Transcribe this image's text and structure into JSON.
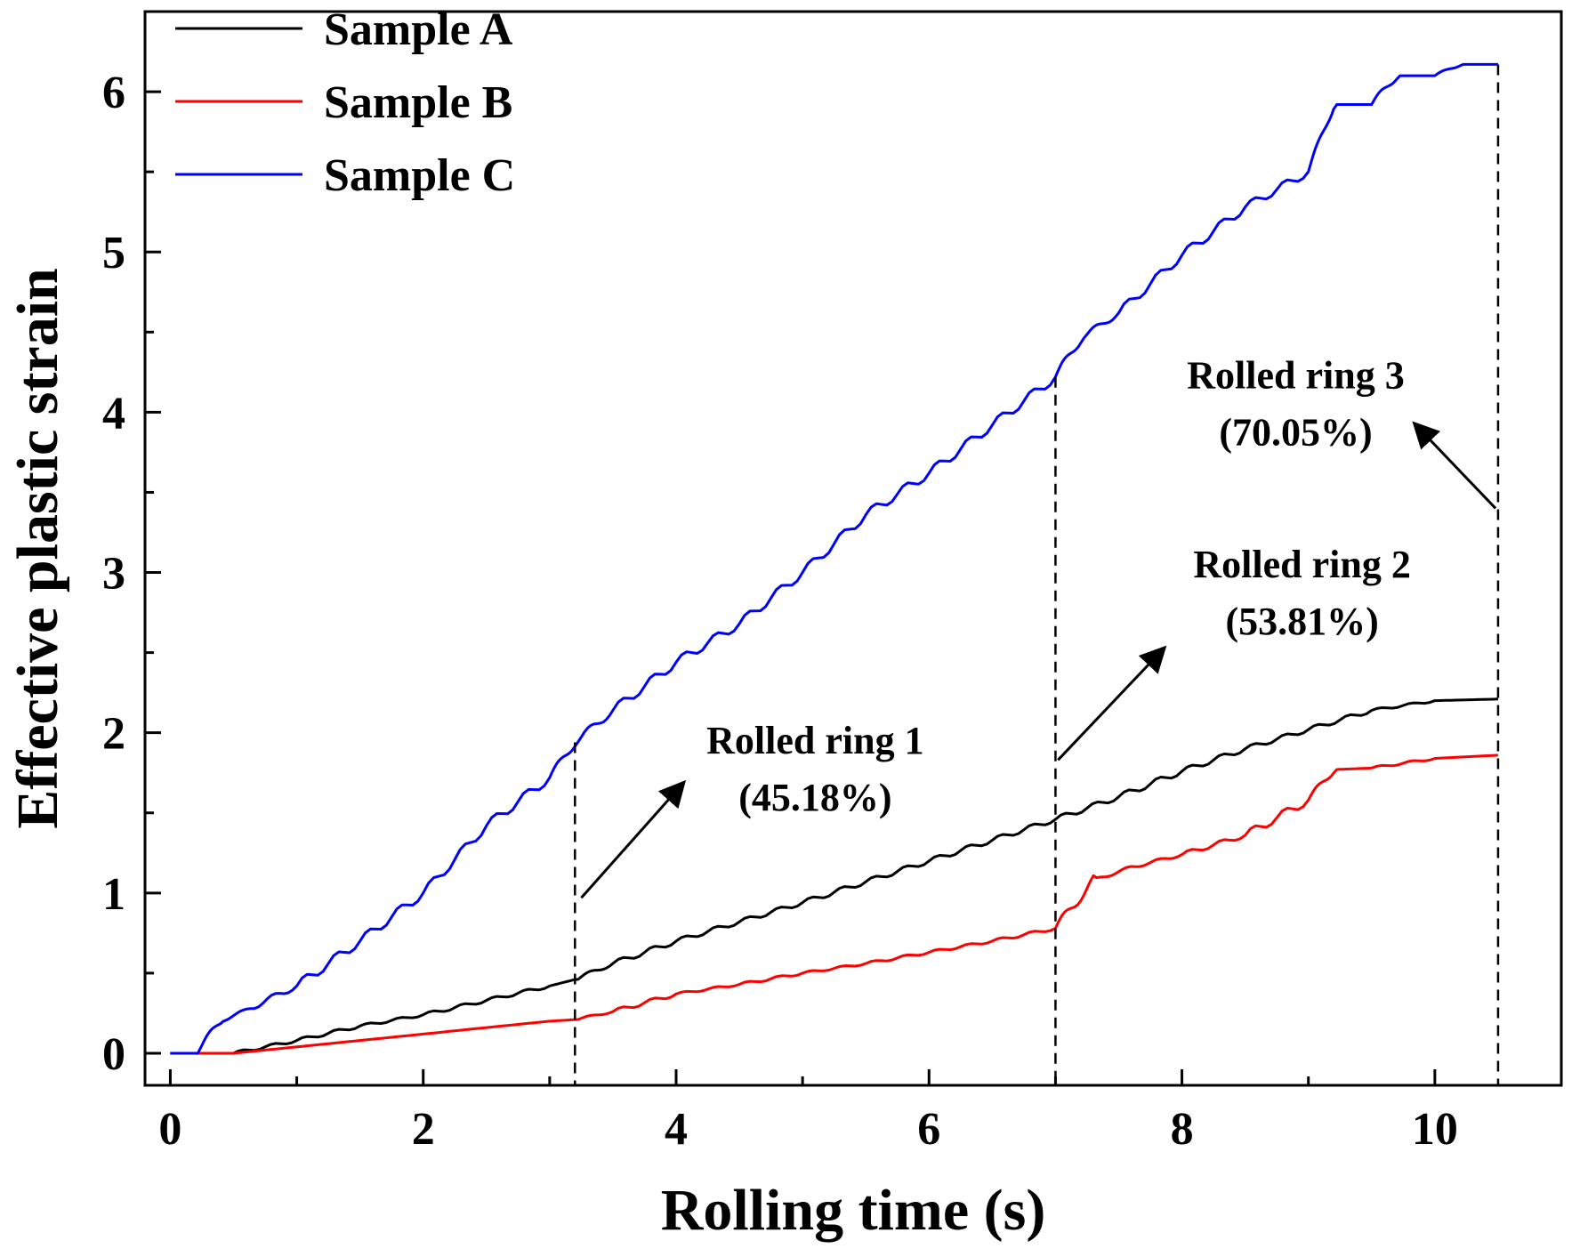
{
  "chart_data": {
    "type": "line",
    "title": "",
    "xlabel": "Rolling time (s)",
    "ylabel": "Effective plastic strain",
    "xlim": [
      -0.2,
      11.0
    ],
    "ylim": [
      -0.2,
      6.5
    ],
    "xticks": [
      0,
      2,
      4,
      6,
      8,
      10
    ],
    "yticks": [
      0,
      1,
      2,
      3,
      4,
      5,
      6
    ],
    "grid": false,
    "legend_position": "top-left",
    "series": [
      {
        "name": "Sample A",
        "color": "#000000",
        "x": [
          0,
          0.5,
          1.0,
          1.5,
          2.0,
          2.5,
          3.0,
          3.2,
          3.5,
          4.0,
          4.5,
          5.0,
          5.5,
          6.0,
          6.5,
          7.0,
          7.5,
          8.0,
          8.5,
          9.0,
          9.5,
          10.0,
          10.5
        ],
        "y": [
          0,
          0,
          0.08,
          0.17,
          0.24,
          0.33,
          0.42,
          0.46,
          0.56,
          0.7,
          0.82,
          0.94,
          1.07,
          1.2,
          1.33,
          1.46,
          1.6,
          1.76,
          1.9,
          2.02,
          2.14,
          2.2,
          2.21
        ]
      },
      {
        "name": "Sample B",
        "color": "#ff0000",
        "x": [
          0,
          0.5,
          1.0,
          1.5,
          2.0,
          2.5,
          3.0,
          3.2,
          3.5,
          4.0,
          4.5,
          5.0,
          5.5,
          6.0,
          6.5,
          7.0,
          7.3,
          7.6,
          8.0,
          8.5,
          9.0,
          9.2,
          9.5,
          10.0,
          10.5
        ],
        "y": [
          0,
          0,
          0.04,
          0.08,
          0.12,
          0.16,
          0.2,
          0.21,
          0.26,
          0.37,
          0.43,
          0.5,
          0.56,
          0.63,
          0.7,
          0.78,
          1.08,
          1.16,
          1.24,
          1.36,
          1.58,
          1.77,
          1.78,
          1.84,
          1.86
        ]
      },
      {
        "name": "Sample C",
        "color": "#0000ff",
        "x": [
          0,
          0.2,
          0.4,
          0.6,
          1.0,
          1.5,
          2.0,
          2.5,
          3.0,
          3.2,
          3.5,
          4.0,
          4.5,
          5.0,
          5.5,
          6.0,
          6.5,
          7.0,
          7.2,
          7.5,
          8.0,
          8.5,
          9.0,
          9.2,
          9.5,
          9.7,
          10.0,
          10.2,
          10.5
        ],
        "y": [
          0,
          0,
          0.2,
          0.27,
          0.42,
          0.7,
          1.0,
          1.42,
          1.72,
          1.94,
          2.14,
          2.44,
          2.68,
          3.0,
          3.36,
          3.62,
          3.92,
          4.22,
          4.46,
          4.62,
          4.98,
          5.28,
          5.5,
          5.92,
          5.92,
          6.1,
          6.1,
          6.17,
          6.17
        ]
      }
    ],
    "reference_lines_x": [
      3.2,
      7.0,
      10.5
    ],
    "annotations": [
      {
        "line1": "Rolled ring 1",
        "line2": "(45.18%)",
        "arrow_from": [
          3.25,
          0.97
        ],
        "arrow_to": [
          4.05,
          1.68
        ],
        "text_at": [
          5.1,
          1.87
        ]
      },
      {
        "line1": "Rolled ring 2",
        "line2": "(53.81%)",
        "arrow_from": [
          7.02,
          1.83
        ],
        "arrow_to": [
          7.85,
          2.52
        ],
        "text_at": [
          8.95,
          2.97
        ]
      },
      {
        "line1": "Rolled ring 3",
        "line2": "(70.05%)",
        "arrow_from": [
          10.48,
          3.4
        ],
        "arrow_to": [
          9.85,
          3.92
        ],
        "text_at": [
          8.9,
          4.15
        ]
      }
    ]
  }
}
